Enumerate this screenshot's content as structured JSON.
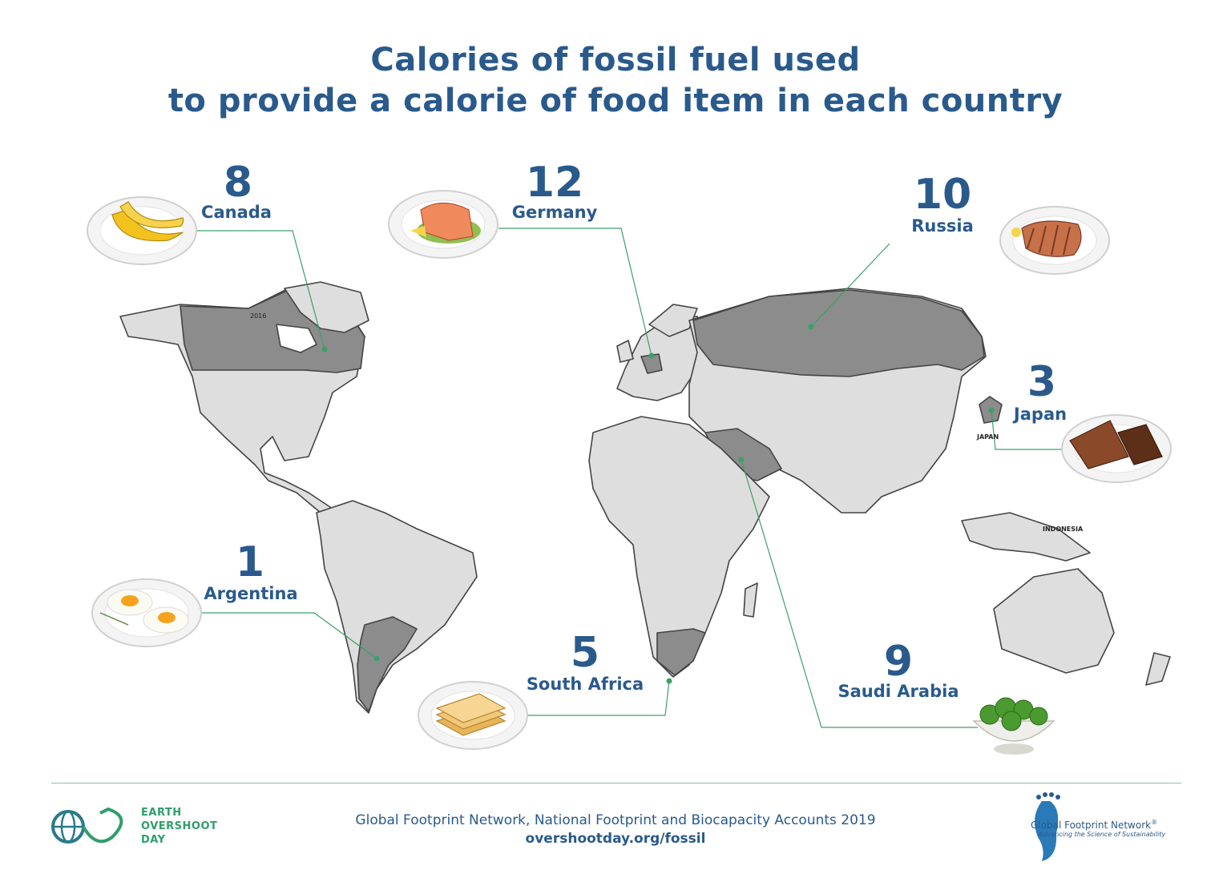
{
  "title": {
    "line1": "Calories of fossil fuel used",
    "line2": "to provide a calorie of food item in each country"
  },
  "countries": [
    {
      "name": "Canada",
      "value": "8",
      "food_icon": "banana-icon"
    },
    {
      "name": "Germany",
      "value": "12",
      "food_icon": "salmon-icon"
    },
    {
      "name": "Russia",
      "value": "10",
      "food_icon": "steak-icon"
    },
    {
      "name": "Japan",
      "value": "3",
      "food_icon": "chocolate-icon"
    },
    {
      "name": "Argentina",
      "value": "1",
      "food_icon": "fried-eggs-icon"
    },
    {
      "name": "South Africa",
      "value": "5",
      "food_icon": "cheese-slices-icon"
    },
    {
      "name": "Saudi Arabia",
      "value": "9",
      "food_icon": "broccoli-icon"
    }
  ],
  "map_labels": {
    "japan": "JAPAN",
    "indonesia": "INDONESIA",
    "year": "2016"
  },
  "footer": {
    "source": "Global Footprint Network, National Footprint and Biocapacity Accounts 2019",
    "url": "overshootday.org/fossil",
    "eod_line1": "EARTH",
    "eod_line2": "OVERSHOOT",
    "eod_line3": "DAY",
    "gfn_name": "Global Footprint Network",
    "gfn_reg": "®",
    "gfn_tagline": "Advancing the Science of Sustainability"
  },
  "colors": {
    "title": "#2a5a8c",
    "land": "#dedede",
    "highlight": "#8c8c8c",
    "outline": "#444444",
    "leader": "#3aa06a"
  }
}
